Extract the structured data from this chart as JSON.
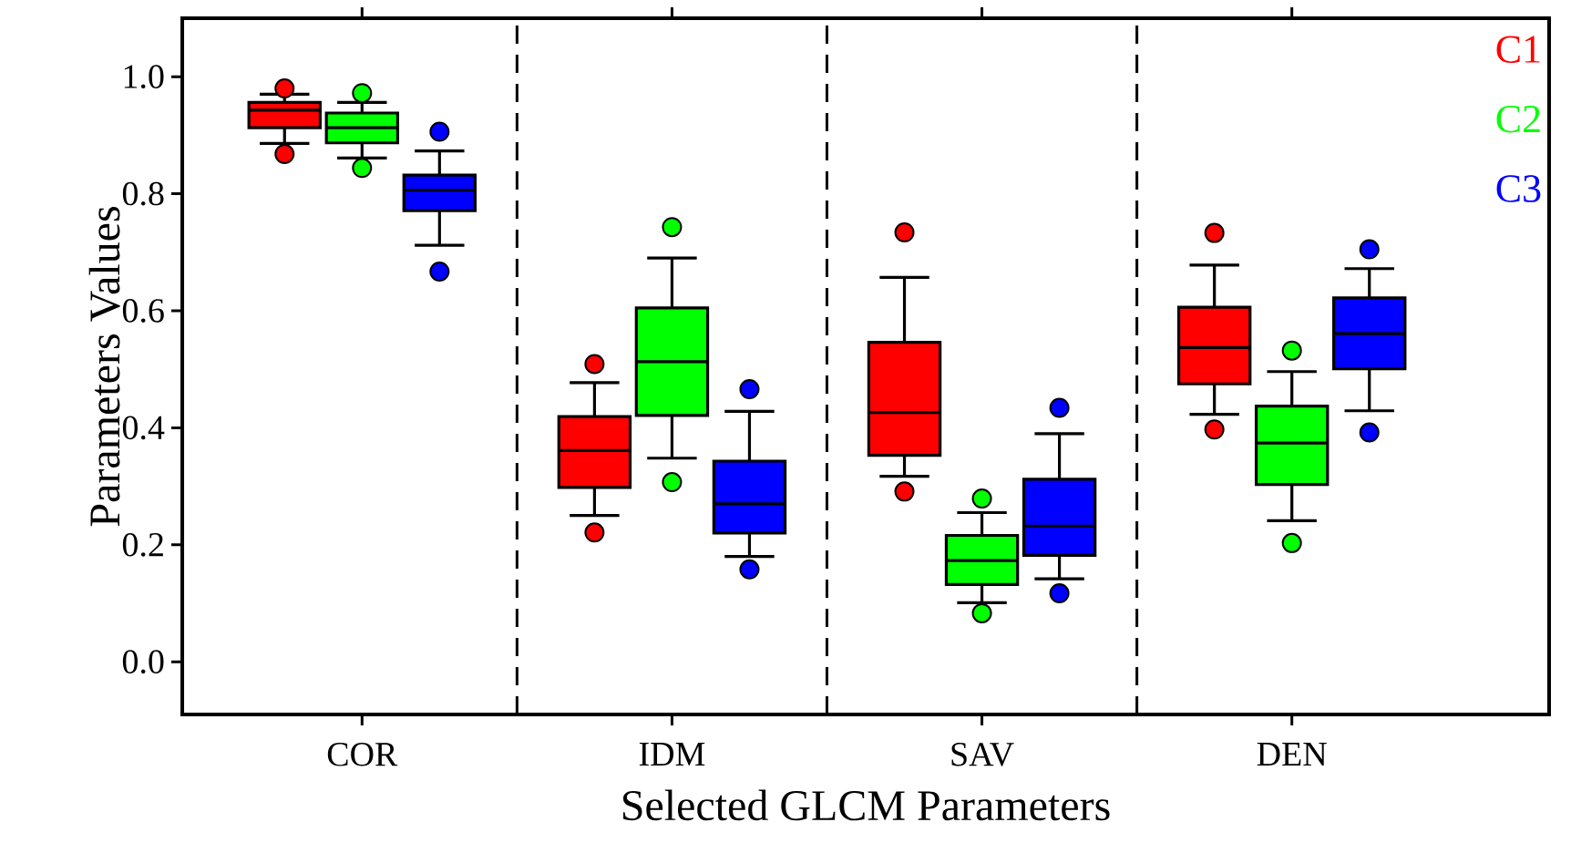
{
  "chart_data": {
    "type": "box",
    "xlabel": "Selected GLCM Parameters",
    "ylabel": "Parameters Values",
    "categories": [
      "COR",
      "IDM",
      "SAV",
      "DEN"
    ],
    "ylim": [
      -0.09,
      1.1
    ],
    "yticks": [
      {
        "value": 0,
        "label": "0.0"
      },
      0.2,
      0.4,
      0.6,
      0.8,
      {
        "value": 1,
        "label": "1.0"
      }
    ],
    "series": [
      {
        "name": "C1",
        "color": "#ff0000",
        "boxes": [
          {
            "low": 0.886,
            "q1": 0.913,
            "median": 0.943,
            "q3": 0.956,
            "high": 0.97,
            "outliers": [
              0.98,
              0.868
            ]
          },
          {
            "low": 0.25,
            "q1": 0.298,
            "median": 0.361,
            "q3": 0.419,
            "high": 0.477,
            "outliers": [
              0.509,
              0.221
            ]
          },
          {
            "low": 0.317,
            "q1": 0.353,
            "median": 0.426,
            "q3": 0.546,
            "high": 0.657,
            "outliers": [
              0.734,
              0.291
            ]
          },
          {
            "low": 0.423,
            "q1": 0.475,
            "median": 0.537,
            "q3": 0.606,
            "high": 0.678,
            "outliers": [
              0.733,
              0.397
            ]
          }
        ]
      },
      {
        "name": "C2",
        "color": "#00ff00",
        "boxes": [
          {
            "low": 0.861,
            "q1": 0.887,
            "median": 0.913,
            "q3": 0.938,
            "high": 0.956,
            "outliers": [
              0.972,
              0.844
            ]
          },
          {
            "low": 0.348,
            "q1": 0.421,
            "median": 0.513,
            "q3": 0.605,
            "high": 0.69,
            "outliers": [
              0.743,
              0.307
            ]
          },
          {
            "low": 0.101,
            "q1": 0.132,
            "median": 0.173,
            "q3": 0.216,
            "high": 0.255,
            "outliers": [
              0.279,
              0.083
            ]
          },
          {
            "low": 0.241,
            "q1": 0.303,
            "median": 0.374,
            "q3": 0.437,
            "high": 0.496,
            "outliers": [
              0.532,
              0.203
            ]
          }
        ]
      },
      {
        "name": "C3",
        "color": "#0000ff",
        "boxes": [
          {
            "low": 0.712,
            "q1": 0.771,
            "median": 0.806,
            "q3": 0.832,
            "high": 0.873,
            "outliers": [
              0.906,
              0.667
            ]
          },
          {
            "low": 0.18,
            "q1": 0.22,
            "median": 0.27,
            "q3": 0.343,
            "high": 0.428,
            "outliers": [
              0.466,
              0.158
            ]
          },
          {
            "low": 0.142,
            "q1": 0.182,
            "median": 0.232,
            "q3": 0.312,
            "high": 0.39,
            "outliers": [
              0.434,
              0.117
            ]
          },
          {
            "low": 0.429,
            "q1": 0.501,
            "median": 0.561,
            "q3": 0.622,
            "high": 0.672,
            "outliers": [
              0.705,
              0.392
            ]
          }
        ]
      }
    ]
  }
}
